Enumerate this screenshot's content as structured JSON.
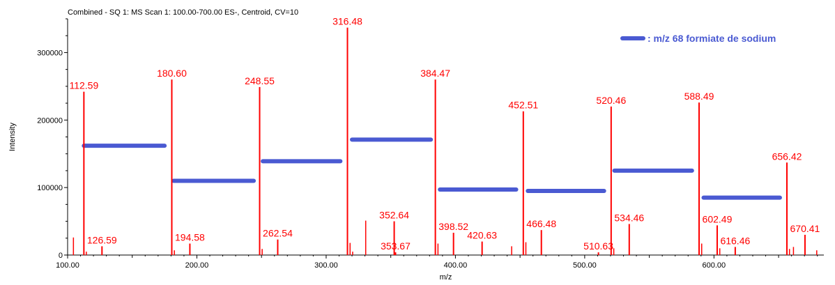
{
  "header": "Combined - SQ 1: MS Scan 1: 100.00-700.00 ES-, Centroid, CV=10",
  "chart_data": {
    "type": "bar",
    "title": "Combined - SQ 1: MS Scan 1: 100.00-700.00 ES-, Centroid, CV=10",
    "xlabel": "m/z",
    "ylabel": "Intensity",
    "xlim": [
      100,
      685
    ],
    "ylim": [
      0,
      350000
    ],
    "x_ticks": [
      {
        "value": 100,
        "label": "100.00"
      },
      {
        "value": 200,
        "label": "200.00"
      },
      {
        "value": 300,
        "label": "300.00"
      },
      {
        "value": 400,
        "label": "400.00"
      },
      {
        "value": 500,
        "label": "500.00"
      },
      {
        "value": 600,
        "label": "600.00"
      }
    ],
    "y_ticks": [
      {
        "value": 0,
        "label": "0"
      },
      {
        "value": 100000,
        "label": "100000"
      },
      {
        "value": 200000,
        "label": "200000"
      },
      {
        "value": 300000,
        "label": "300000"
      }
    ],
    "peak_color": "#ff0000",
    "labeled_peaks": [
      {
        "mz": 112.59,
        "intensity": 242000,
        "label": "112.59"
      },
      {
        "mz": 126.59,
        "intensity": 13000,
        "label": "126.59"
      },
      {
        "mz": 180.6,
        "intensity": 260000,
        "label": "180.60"
      },
      {
        "mz": 194.58,
        "intensity": 17000,
        "label": "194.58"
      },
      {
        "mz": 248.55,
        "intensity": 249000,
        "label": "248.55"
      },
      {
        "mz": 262.54,
        "intensity": 23000,
        "label": "262.54"
      },
      {
        "mz": 316.48,
        "intensity": 337000,
        "label": "316.48"
      },
      {
        "mz": 352.64,
        "intensity": 50000,
        "label": "352.64"
      },
      {
        "mz": 353.67,
        "intensity": 4000,
        "label": "353.67"
      },
      {
        "mz": 384.47,
        "intensity": 260000,
        "label": "384.47"
      },
      {
        "mz": 398.52,
        "intensity": 33000,
        "label": "398.52"
      },
      {
        "mz": 420.63,
        "intensity": 20000,
        "label": "420.63"
      },
      {
        "mz": 452.51,
        "intensity": 213000,
        "label": "452.51"
      },
      {
        "mz": 466.48,
        "intensity": 37000,
        "label": "466.48"
      },
      {
        "mz": 510.63,
        "intensity": 4000,
        "label": "510.63"
      },
      {
        "mz": 520.46,
        "intensity": 220000,
        "label": "520.46"
      },
      {
        "mz": 534.46,
        "intensity": 46000,
        "label": "534.46"
      },
      {
        "mz": 588.49,
        "intensity": 226000,
        "label": "588.49"
      },
      {
        "mz": 602.49,
        "intensity": 44000,
        "label": "602.49"
      },
      {
        "mz": 616.46,
        "intensity": 12000,
        "label": "616.46"
      },
      {
        "mz": 656.42,
        "intensity": 137000,
        "label": "656.42"
      },
      {
        "mz": 670.41,
        "intensity": 30000,
        "label": "670.41"
      }
    ],
    "minor_peaks": [
      {
        "mz": 104.5,
        "intensity": 26000
      },
      {
        "mz": 114.5,
        "intensity": 5000
      },
      {
        "mz": 182.6,
        "intensity": 7000
      },
      {
        "mz": 250.5,
        "intensity": 9000
      },
      {
        "mz": 318.5,
        "intensity": 18000
      },
      {
        "mz": 320.5,
        "intensity": 5000
      },
      {
        "mz": 330.6,
        "intensity": 51000
      },
      {
        "mz": 386.5,
        "intensity": 17000
      },
      {
        "mz": 443.5,
        "intensity": 13000
      },
      {
        "mz": 454.5,
        "intensity": 19000
      },
      {
        "mz": 522.5,
        "intensity": 10000
      },
      {
        "mz": 590.5,
        "intensity": 17000
      },
      {
        "mz": 604.5,
        "intensity": 10000
      },
      {
        "mz": 658.4,
        "intensity": 9000
      },
      {
        "mz": 661.5,
        "intensity": 12000
      },
      {
        "mz": 679.5,
        "intensity": 7000
      }
    ],
    "legend": {
      "text": ": m/z 68 formiate de sodium",
      "color": "#4a5ad2",
      "placement": "top-right"
    },
    "spacing_bars": [
      {
        "x_start": 112.59,
        "x_end": 175.0,
        "y": 162000
      },
      {
        "x_start": 182.0,
        "x_end": 244.0,
        "y": 110000
      },
      {
        "x_start": 251.0,
        "x_end": 311.0,
        "y": 139000
      },
      {
        "x_start": 320.0,
        "x_end": 381.0,
        "y": 171000
      },
      {
        "x_start": 388.0,
        "x_end": 447.0,
        "y": 97000
      },
      {
        "x_start": 456.0,
        "x_end": 515.0,
        "y": 95000
      },
      {
        "x_start": 523.0,
        "x_end": 583.0,
        "y": 125000
      },
      {
        "x_start": 592.0,
        "x_end": 651.0,
        "y": 85000
      }
    ]
  }
}
